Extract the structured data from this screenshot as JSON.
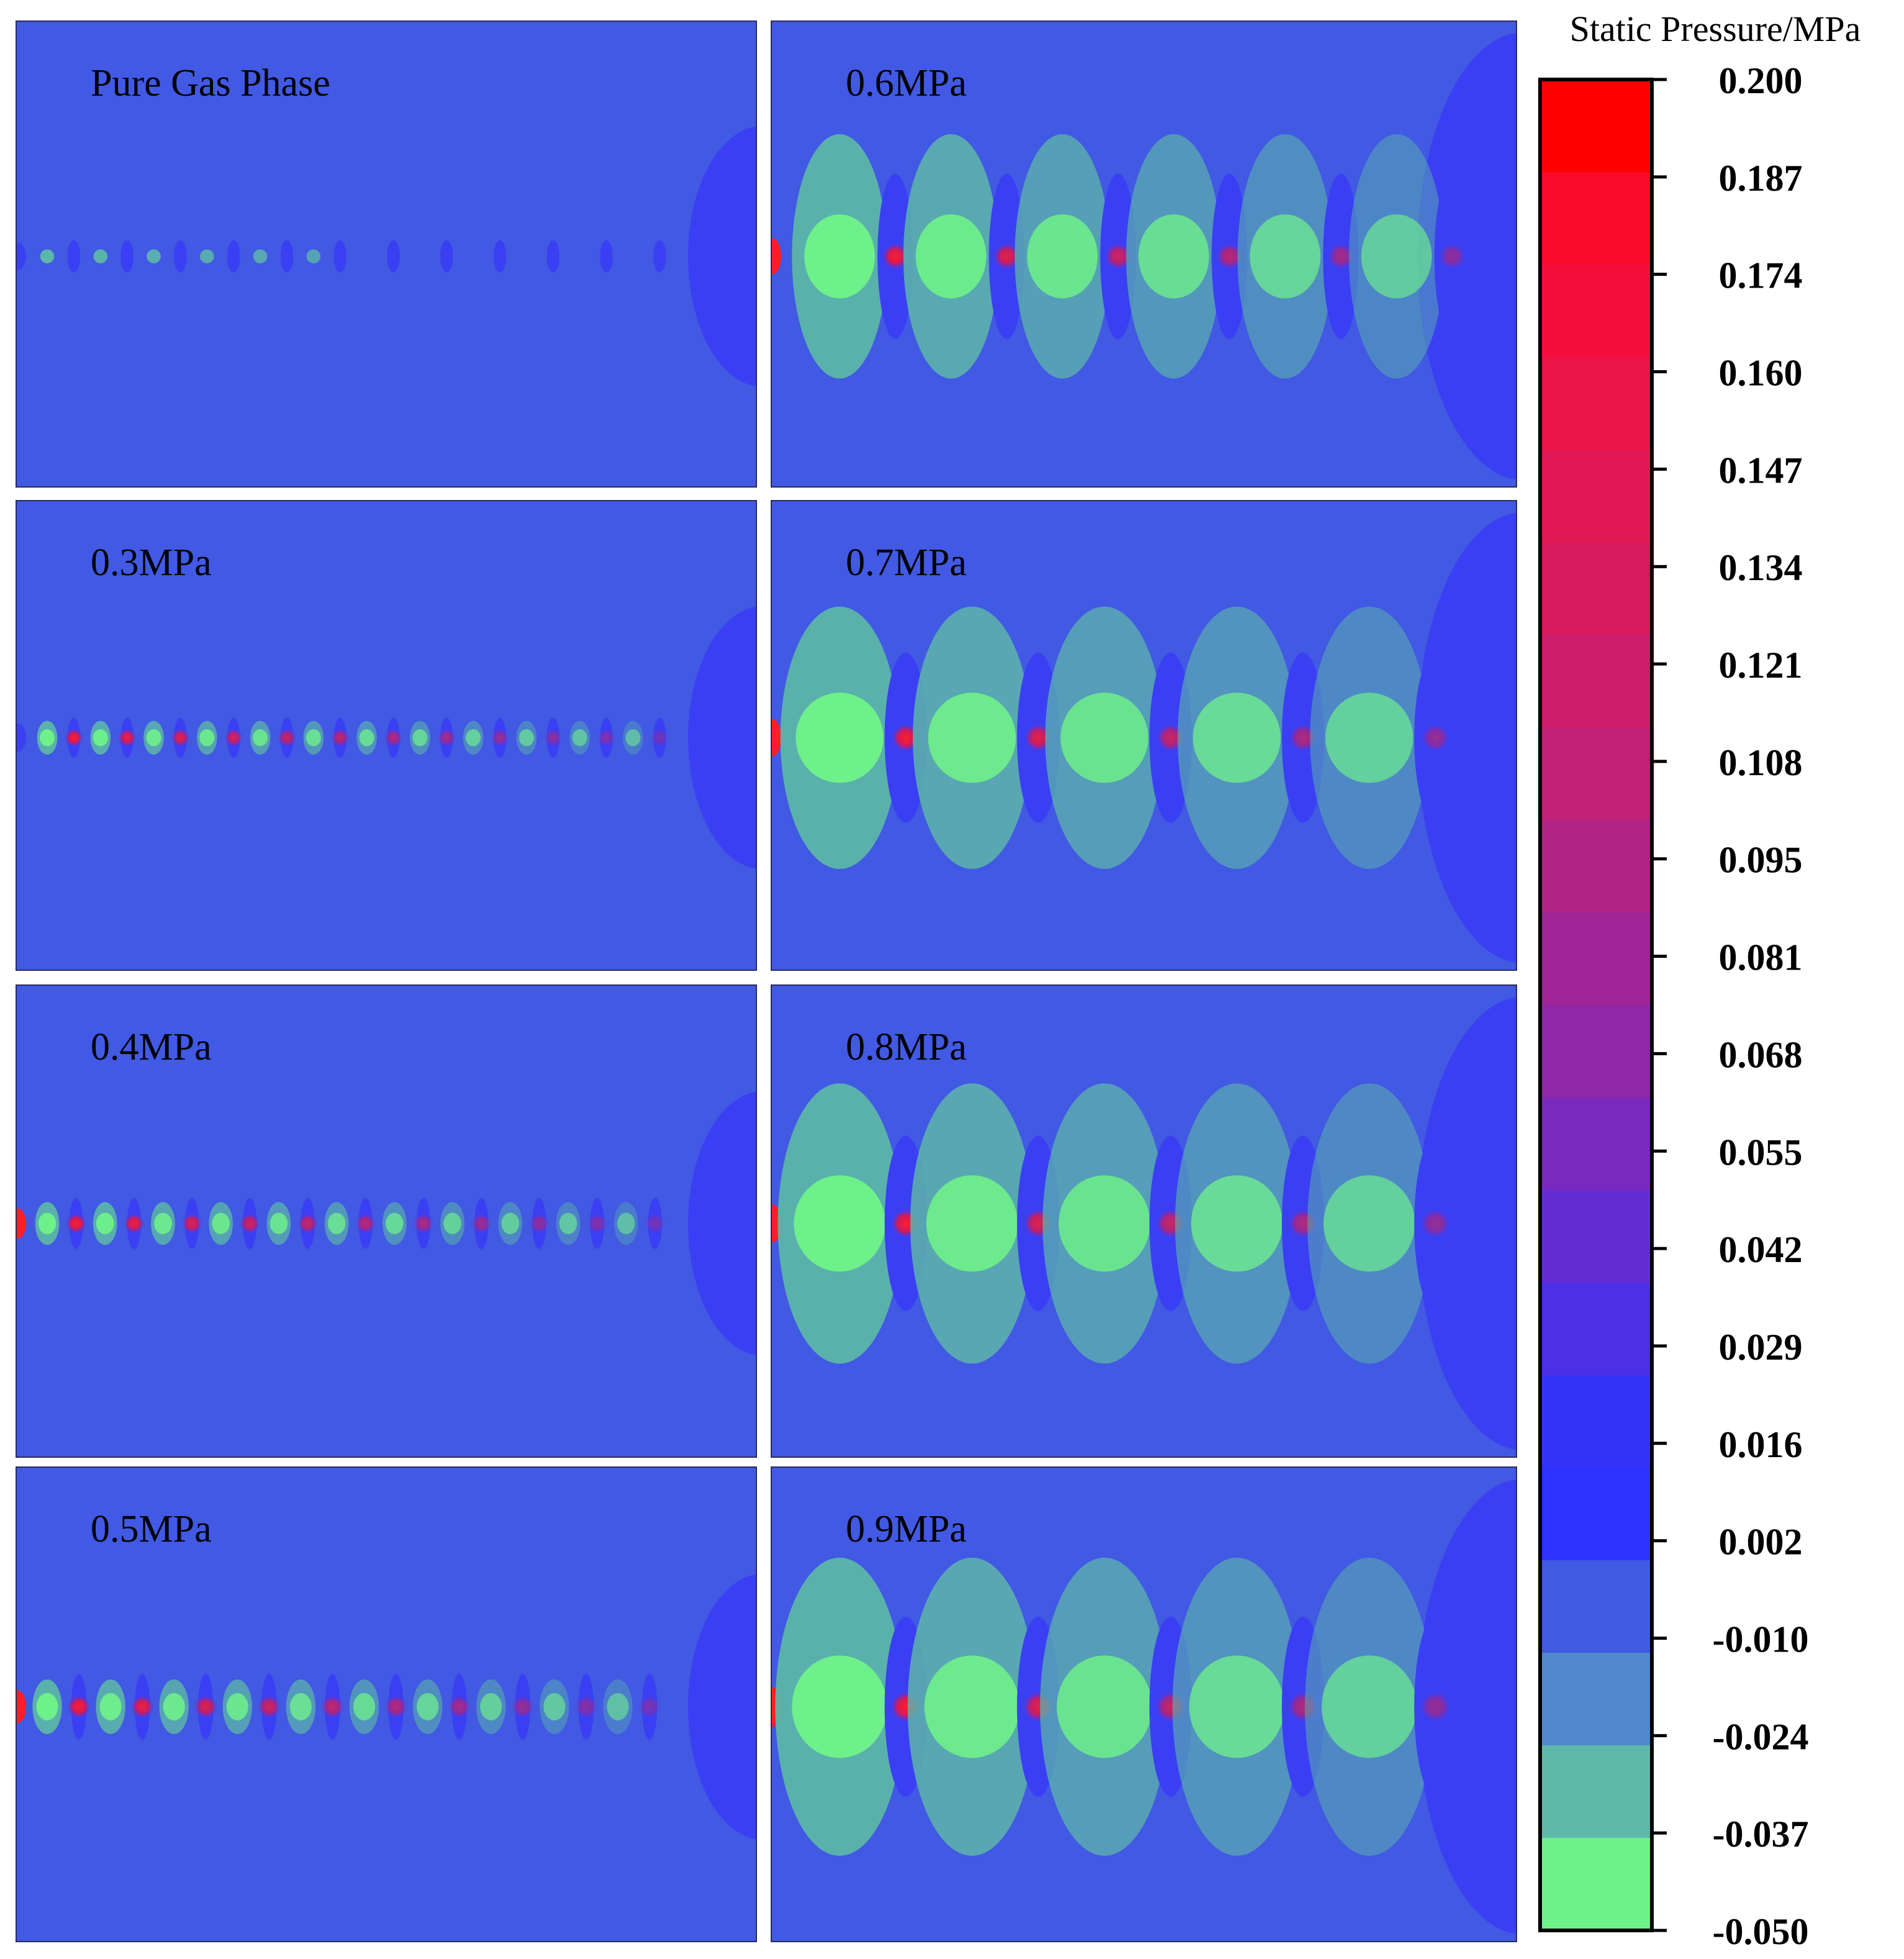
{
  "panels": [
    {
      "id": "pure-gas",
      "label": "Pure Gas Phase",
      "intensity": 0.0
    },
    {
      "id": "p03",
      "label": "0.3MPa",
      "intensity": 0.1
    },
    {
      "id": "p04",
      "label": "0.4MPa",
      "intensity": 0.25
    },
    {
      "id": "p05",
      "label": "0.5MPa",
      "intensity": 0.45
    },
    {
      "id": "p06",
      "label": "0.6MPa",
      "intensity": 0.7
    },
    {
      "id": "p07",
      "label": "0.7MPa",
      "intensity": 0.8
    },
    {
      "id": "p08",
      "label": "0.8MPa",
      "intensity": 0.9
    },
    {
      "id": "p09",
      "label": "0.9MPa",
      "intensity": 1.0
    }
  ],
  "colorbar": {
    "title": "Static Pressure/MPa",
    "ticks": [
      "0.200",
      "0.187",
      "0.174",
      "0.160",
      "0.147",
      "0.134",
      "0.121",
      "0.108",
      "0.095",
      "0.081",
      "0.068",
      "0.055",
      "0.042",
      "0.029",
      "0.016",
      "0.002",
      "-0.010",
      "-0.024",
      "-0.037",
      "-0.050"
    ],
    "colors": [
      "#ff0000",
      "#f90a28",
      "#f30e3c",
      "#ea1448",
      "#e11854",
      "#d81a5e",
      "#ce1d6a",
      "#c12176",
      "#b12486",
      "#a02596",
      "#8f27a8",
      "#7a29bf",
      "#642dd4",
      "#4d2fe6",
      "#3532f8",
      "#2d33ff",
      "#3f5be2",
      "#5189cf",
      "#60b8a9",
      "#6ef08a"
    ]
  },
  "colors": {
    "background_field": "#4159e3",
    "low_pressure_dark": "#3a3ff3",
    "green": "#6ef08a",
    "teal": "#5cb6a9",
    "red": "#ff1e28"
  }
}
